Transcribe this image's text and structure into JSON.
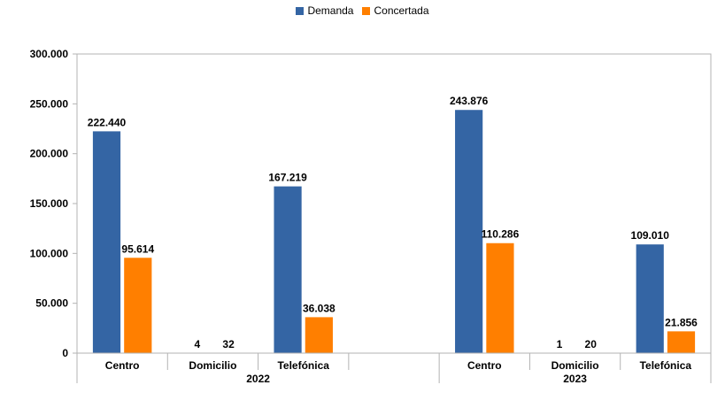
{
  "chart_data": {
    "type": "bar",
    "legend_position": "top-center",
    "grid": false,
    "ylim": [
      0,
      300000
    ],
    "yticks": [
      0,
      50000,
      100000,
      150000,
      200000,
      250000,
      300000
    ],
    "ytick_labels": [
      "0",
      "50.000",
      "100.000",
      "150.000",
      "200.000",
      "250.000",
      "300.000"
    ],
    "groups": [
      {
        "label": "2022",
        "categories": [
          "Centro",
          "Domicilio",
          "Telefónica",
          ""
        ]
      },
      {
        "label": "2023",
        "categories": [
          "Centro",
          "Domicilio",
          "Telefónica"
        ]
      }
    ],
    "series": [
      {
        "name": "Demanda",
        "color": "#3465a4",
        "values": [
          222440,
          4,
          167219,
          null,
          243876,
          1,
          109010
        ],
        "labels": [
          "222.440",
          "4",
          "167.219",
          "",
          "243.876",
          "1",
          "109.010"
        ]
      },
      {
        "name": "Concertada",
        "color": "#ff7f00",
        "values": [
          95614,
          32,
          36038,
          null,
          110286,
          20,
          21856
        ],
        "labels": [
          "95.614",
          "32",
          "36.038",
          "",
          "110.286",
          "20",
          "21.856"
        ]
      }
    ]
  }
}
